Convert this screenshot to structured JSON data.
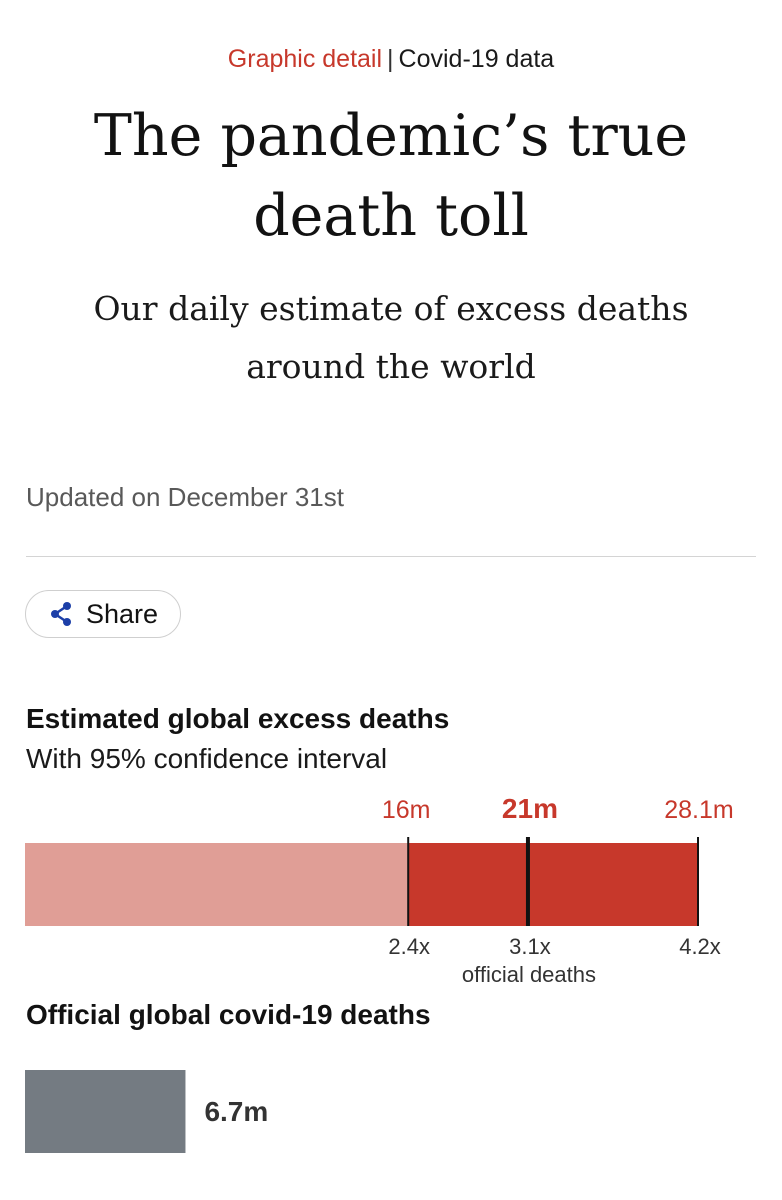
{
  "header": {
    "section": "Graphic detail",
    "separator": "|",
    "topic": "Covid-19 data"
  },
  "headline": "The pandemic’s true death toll",
  "subheadline": "Our daily estimate of excess deaths around the world",
  "updated": "Updated on December 31st",
  "share": {
    "label": "Share",
    "icon": "share-icon"
  },
  "colors": {
    "accent": "#c7382b",
    "bar_light": "#e09e96",
    "bar_dark": "#c7382b",
    "official": "#747b82"
  },
  "chart_data": [
    {
      "type": "bar",
      "title": "Estimated global excess deaths",
      "subtitle": "With 95% confidence interval",
      "unit": "m",
      "xlim": [
        0,
        28.1
      ],
      "estimate": {
        "value": 21,
        "label": "21m",
        "multiple": "3.1x"
      },
      "lower": {
        "value": 16,
        "label": "16m",
        "multiple": "2.4x"
      },
      "upper": {
        "value": 28.1,
        "label": "28.1m",
        "multiple": "4.2x"
      },
      "multiple_caption": "official deaths"
    },
    {
      "type": "bar",
      "title": "Official global covid-19 deaths",
      "value": 6.7,
      "label": "6.7m"
    }
  ]
}
